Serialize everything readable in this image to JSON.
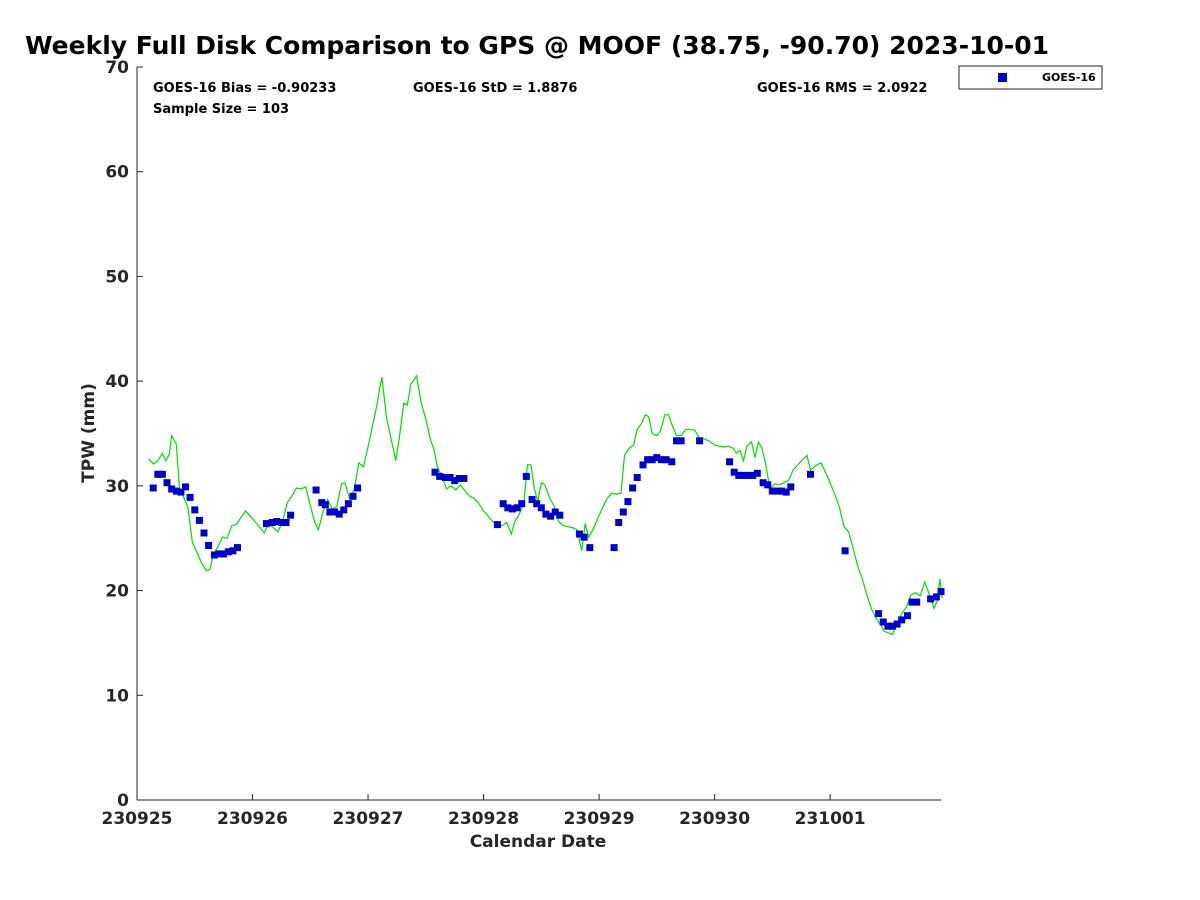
{
  "chart_data": {
    "type": "scatter",
    "title": "Weekly Full Disk Comparison to GPS @ MOOF (38.75, -90.70) 2023-10-01",
    "xlabel": "Calendar Date",
    "ylabel": "TPW (mm)",
    "x_unit": "days",
    "x_start": "230925",
    "xlim": [
      0,
      6.96
    ],
    "ylim": [
      0,
      70
    ],
    "x_ticks": [
      0,
      1,
      2,
      3,
      4,
      5,
      6
    ],
    "x_tick_labels": [
      "230925",
      "230926",
      "230927",
      "230928",
      "230929",
      "230930",
      "231001"
    ],
    "y_ticks": [
      0,
      10,
      20,
      30,
      40,
      50,
      60,
      70
    ],
    "y_tick_labels": [
      "0",
      "10",
      "20",
      "30",
      "40",
      "50",
      "60",
      "70"
    ],
    "grid": false,
    "legend_position": "outside-top-right",
    "stats": {
      "bias": "GOES-16 Bias = -0.90233",
      "std": "GOES-16 StD = 1.8876",
      "rms": "GOES-16 RMS = 2.0922",
      "sample_size": "Sample Size = 103"
    },
    "series": [
      {
        "name": "GOES-16",
        "kind": "scatter",
        "marker": "square",
        "color": "#0000cc",
        "points": [
          [
            0.14,
            29.8
          ],
          [
            0.18,
            31.1
          ],
          [
            0.22,
            31.1
          ],
          [
            0.26,
            30.3
          ],
          [
            0.3,
            29.7
          ],
          [
            0.34,
            29.5
          ],
          [
            0.38,
            29.4
          ],
          [
            0.42,
            29.9
          ],
          [
            0.46,
            28.9
          ],
          [
            0.5,
            27.7
          ],
          [
            0.54,
            26.7
          ],
          [
            0.58,
            25.5
          ],
          [
            0.62,
            24.3
          ],
          [
            0.67,
            23.4
          ],
          [
            0.71,
            23.5
          ],
          [
            0.75,
            23.5
          ],
          [
            0.79,
            23.7
          ],
          [
            0.83,
            23.8
          ],
          [
            0.87,
            24.1
          ],
          [
            1.12,
            26.4
          ],
          [
            1.17,
            26.5
          ],
          [
            1.21,
            26.6
          ],
          [
            1.25,
            26.5
          ],
          [
            1.29,
            26.5
          ],
          [
            1.33,
            27.2
          ],
          [
            1.55,
            29.6
          ],
          [
            1.6,
            28.4
          ],
          [
            1.63,
            28.2
          ],
          [
            1.67,
            27.5
          ],
          [
            1.71,
            27.5
          ],
          [
            1.75,
            27.3
          ],
          [
            1.79,
            27.7
          ],
          [
            1.83,
            28.3
          ],
          [
            1.87,
            29.0
          ],
          [
            1.91,
            29.8
          ],
          [
            2.58,
            31.3
          ],
          [
            2.62,
            30.9
          ],
          [
            2.67,
            30.8
          ],
          [
            2.71,
            30.8
          ],
          [
            2.75,
            30.5
          ],
          [
            2.79,
            30.7
          ],
          [
            2.83,
            30.7
          ],
          [
            3.12,
            26.3
          ],
          [
            3.17,
            28.3
          ],
          [
            3.21,
            27.9
          ],
          [
            3.25,
            27.8
          ],
          [
            3.29,
            27.9
          ],
          [
            3.33,
            28.3
          ],
          [
            3.37,
            30.9
          ],
          [
            3.42,
            28.7
          ],
          [
            3.46,
            28.3
          ],
          [
            3.5,
            27.9
          ],
          [
            3.54,
            27.3
          ],
          [
            3.58,
            27.1
          ],
          [
            3.62,
            27.5
          ],
          [
            3.66,
            27.2
          ],
          [
            3.83,
            25.4
          ],
          [
            3.87,
            25.1
          ],
          [
            3.92,
            24.1
          ],
          [
            4.13,
            24.1
          ],
          [
            4.17,
            26.5
          ],
          [
            4.21,
            27.5
          ],
          [
            4.25,
            28.5
          ],
          [
            4.29,
            29.8
          ],
          [
            4.33,
            30.8
          ],
          [
            4.38,
            32.0
          ],
          [
            4.42,
            32.5
          ],
          [
            4.46,
            32.5
          ],
          [
            4.5,
            32.7
          ],
          [
            4.54,
            32.5
          ],
          [
            4.58,
            32.5
          ],
          [
            4.63,
            32.3
          ],
          [
            4.67,
            34.3
          ],
          [
            4.71,
            34.3
          ],
          [
            4.87,
            34.3
          ],
          [
            5.13,
            32.3
          ],
          [
            5.17,
            31.3
          ],
          [
            5.21,
            31.0
          ],
          [
            5.25,
            31.0
          ],
          [
            5.29,
            31.0
          ],
          [
            5.33,
            31.0
          ],
          [
            5.37,
            31.2
          ],
          [
            5.42,
            30.3
          ],
          [
            5.46,
            30.1
          ],
          [
            5.5,
            29.5
          ],
          [
            5.54,
            29.5
          ],
          [
            5.58,
            29.5
          ],
          [
            5.62,
            29.4
          ],
          [
            5.66,
            29.9
          ],
          [
            5.83,
            31.1
          ],
          [
            6.13,
            23.8
          ],
          [
            6.42,
            17.8
          ],
          [
            6.46,
            17.0
          ],
          [
            6.5,
            16.6
          ],
          [
            6.54,
            16.6
          ],
          [
            6.58,
            16.8
          ],
          [
            6.62,
            17.2
          ],
          [
            6.67,
            17.6
          ],
          [
            6.71,
            18.9
          ],
          [
            6.75,
            18.9
          ],
          [
            6.87,
            19.2
          ],
          [
            6.92,
            19.4
          ],
          [
            6.96,
            19.9
          ]
        ]
      },
      {
        "name": "",
        "kind": "line",
        "color": "#00dd00",
        "points": [
          [
            0.1,
            32.6
          ],
          [
            0.14,
            32.1
          ],
          [
            0.18,
            32.4
          ],
          [
            0.22,
            33.1
          ],
          [
            0.25,
            32.4
          ],
          [
            0.28,
            33.0
          ],
          [
            0.3,
            34.8
          ],
          [
            0.34,
            34.0
          ],
          [
            0.37,
            29.5
          ],
          [
            0.4,
            29.0
          ],
          [
            0.44,
            28.0
          ],
          [
            0.48,
            24.6
          ],
          [
            0.52,
            23.6
          ],
          [
            0.56,
            22.6
          ],
          [
            0.6,
            21.9
          ],
          [
            0.63,
            22.0
          ],
          [
            0.66,
            23.4
          ],
          [
            0.7,
            24.2
          ],
          [
            0.74,
            25.1
          ],
          [
            0.78,
            25.0
          ],
          [
            0.82,
            26.2
          ],
          [
            0.86,
            26.3
          ],
          [
            0.9,
            27.0
          ],
          [
            0.94,
            27.6
          ],
          [
            0.98,
            27.1
          ],
          [
            1.02,
            26.6
          ],
          [
            1.06,
            26.1
          ],
          [
            1.1,
            25.5
          ],
          [
            1.14,
            26.4
          ],
          [
            1.18,
            26.0
          ],
          [
            1.22,
            25.6
          ],
          [
            1.26,
            26.6
          ],
          [
            1.3,
            28.4
          ],
          [
            1.34,
            29.0
          ],
          [
            1.38,
            29.8
          ],
          [
            1.42,
            29.7
          ],
          [
            1.46,
            29.9
          ],
          [
            1.5,
            28.1
          ],
          [
            1.54,
            26.5
          ],
          [
            1.57,
            25.8
          ],
          [
            1.61,
            27.5
          ],
          [
            1.65,
            28.7
          ],
          [
            1.69,
            27.8
          ],
          [
            1.73,
            28.0
          ],
          [
            1.77,
            30.2
          ],
          [
            1.8,
            30.3
          ],
          [
            1.84,
            28.8
          ],
          [
            1.88,
            29.6
          ],
          [
            1.92,
            32.2
          ],
          [
            1.96,
            31.8
          ],
          [
            2.0,
            33.7
          ],
          [
            2.04,
            35.8
          ],
          [
            2.08,
            37.9
          ],
          [
            2.1,
            39.3
          ],
          [
            2.12,
            40.4
          ],
          [
            2.16,
            36.5
          ],
          [
            2.2,
            34.5
          ],
          [
            2.24,
            32.4
          ],
          [
            2.27,
            34.5
          ],
          [
            2.31,
            37.9
          ],
          [
            2.34,
            37.7
          ],
          [
            2.37,
            39.7
          ],
          [
            2.42,
            40.5
          ],
          [
            2.46,
            37.9
          ],
          [
            2.5,
            36.4
          ],
          [
            2.54,
            34.4
          ],
          [
            2.57,
            33.5
          ],
          [
            2.6,
            31.8
          ],
          [
            2.64,
            30.9
          ],
          [
            2.68,
            29.7
          ],
          [
            2.72,
            30.0
          ],
          [
            2.76,
            29.6
          ],
          [
            2.8,
            30.1
          ],
          [
            2.84,
            29.5
          ],
          [
            2.88,
            29.0
          ],
          [
            2.92,
            28.8
          ],
          [
            2.96,
            28.3
          ],
          [
            3.0,
            27.6
          ],
          [
            3.04,
            27.1
          ],
          [
            3.08,
            26.6
          ],
          [
            3.12,
            26.3
          ],
          [
            3.16,
            26.2
          ],
          [
            3.2,
            26.5
          ],
          [
            3.24,
            25.4
          ],
          [
            3.27,
            26.6
          ],
          [
            3.31,
            27.3
          ],
          [
            3.35,
            28.5
          ],
          [
            3.38,
            32.0
          ],
          [
            3.41,
            32.0
          ],
          [
            3.44,
            29.7
          ],
          [
            3.47,
            28.5
          ],
          [
            3.5,
            30.3
          ],
          [
            3.53,
            30.1
          ],
          [
            3.57,
            28.9
          ],
          [
            3.61,
            28.1
          ],
          [
            3.65,
            26.6
          ],
          [
            3.69,
            26.2
          ],
          [
            3.73,
            26.1
          ],
          [
            3.77,
            26.0
          ],
          [
            3.81,
            25.8
          ],
          [
            3.85,
            23.8
          ],
          [
            3.88,
            26.4
          ],
          [
            3.91,
            25.1
          ],
          [
            3.95,
            25.9
          ],
          [
            3.99,
            26.9
          ],
          [
            4.03,
            27.9
          ],
          [
            4.07,
            28.8
          ],
          [
            4.11,
            29.3
          ],
          [
            4.15,
            29.2
          ],
          [
            4.19,
            29.3
          ],
          [
            4.22,
            32.9
          ],
          [
            4.26,
            33.6
          ],
          [
            4.3,
            33.9
          ],
          [
            4.33,
            35.4
          ],
          [
            4.37,
            36.0
          ],
          [
            4.4,
            36.8
          ],
          [
            4.43,
            36.6
          ],
          [
            4.46,
            35.0
          ],
          [
            4.5,
            34.8
          ],
          [
            4.53,
            35.2
          ],
          [
            4.57,
            36.8
          ],
          [
            4.6,
            36.8
          ],
          [
            4.63,
            35.9
          ],
          [
            4.67,
            34.8
          ],
          [
            4.71,
            34.8
          ],
          [
            4.75,
            35.4
          ],
          [
            4.79,
            35.4
          ],
          [
            4.83,
            35.3
          ],
          [
            4.87,
            34.5
          ],
          [
            4.91,
            34.5
          ],
          [
            4.95,
            34.3
          ],
          [
            5.0,
            33.9
          ],
          [
            5.04,
            33.8
          ],
          [
            5.08,
            33.7
          ],
          [
            5.12,
            33.8
          ],
          [
            5.16,
            33.6
          ],
          [
            5.19,
            33.1
          ],
          [
            5.22,
            33.4
          ],
          [
            5.25,
            32.4
          ],
          [
            5.28,
            33.8
          ],
          [
            5.32,
            34.2
          ],
          [
            5.35,
            32.7
          ],
          [
            5.38,
            34.2
          ],
          [
            5.41,
            33.6
          ],
          [
            5.44,
            32.2
          ],
          [
            5.48,
            29.7
          ],
          [
            5.52,
            30.2
          ],
          [
            5.56,
            30.1
          ],
          [
            5.6,
            30.3
          ],
          [
            5.64,
            30.5
          ],
          [
            5.68,
            31.5
          ],
          [
            5.72,
            32.0
          ],
          [
            5.76,
            32.5
          ],
          [
            5.8,
            32.9
          ],
          [
            5.83,
            31.5
          ],
          [
            5.87,
            31.9
          ],
          [
            5.92,
            32.2
          ],
          [
            5.96,
            31.3
          ],
          [
            6.0,
            30.3
          ],
          [
            6.04,
            29.2
          ],
          [
            6.08,
            28.0
          ],
          [
            6.12,
            26.1
          ],
          [
            6.16,
            25.6
          ],
          [
            6.2,
            24.0
          ],
          [
            6.24,
            22.3
          ],
          [
            6.28,
            21.1
          ],
          [
            6.32,
            19.5
          ],
          [
            6.36,
            18.2
          ],
          [
            6.4,
            17.3
          ],
          [
            6.44,
            16.7
          ],
          [
            6.47,
            16.1
          ],
          [
            6.5,
            16.0
          ],
          [
            6.54,
            15.8
          ],
          [
            6.58,
            16.9
          ],
          [
            6.62,
            17.8
          ],
          [
            6.66,
            18.4
          ],
          [
            6.7,
            19.6
          ],
          [
            6.74,
            19.8
          ],
          [
            6.78,
            19.5
          ],
          [
            6.82,
            20.8
          ],
          [
            6.86,
            19.6
          ],
          [
            6.9,
            18.3
          ],
          [
            6.93,
            19.1
          ],
          [
            6.95,
            21.1
          ],
          [
            6.97,
            19.3
          ]
        ]
      }
    ]
  }
}
